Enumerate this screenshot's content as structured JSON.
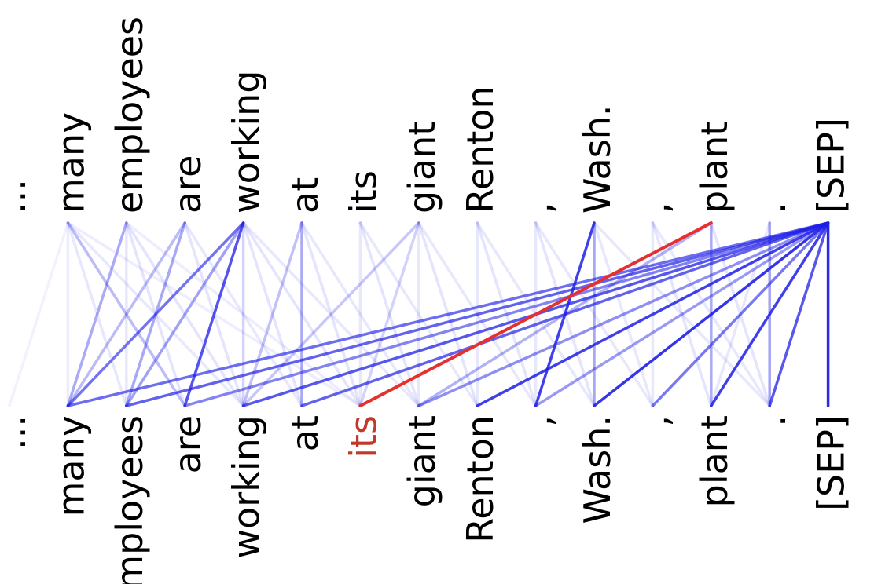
{
  "diagram": {
    "tokens": [
      "...",
      "many",
      "employees",
      "are",
      "working",
      "at",
      "its",
      "giant",
      "Renton",
      ",",
      "Wash.",
      ",",
      "plant",
      ".",
      "[SEP]"
    ],
    "focus_token_index": 6,
    "colors": {
      "attention": "#1f1fe6",
      "highlight": "#e53030",
      "text": "#000000",
      "focus_text": "#c0392b"
    },
    "edges": [
      {
        "from": 1,
        "to": 0,
        "w": 0.06
      },
      {
        "from": 1,
        "to": 1,
        "w": 0.08
      },
      {
        "from": 1,
        "to": 2,
        "w": 0.1
      },
      {
        "from": 1,
        "to": 3,
        "w": 0.1
      },
      {
        "from": 1,
        "to": 4,
        "w": 0.1
      },
      {
        "from": 1,
        "to": 6,
        "w": 0.08
      },
      {
        "from": 2,
        "to": 2,
        "w": 0.1
      },
      {
        "from": 2,
        "to": 3,
        "w": 0.12
      },
      {
        "from": 2,
        "to": 4,
        "w": 0.12
      },
      {
        "from": 2,
        "to": 6,
        "w": 0.08
      },
      {
        "from": 3,
        "to": 2,
        "w": 0.12
      },
      {
        "from": 3,
        "to": 4,
        "w": 0.12
      },
      {
        "from": 3,
        "to": 5,
        "w": 0.1
      },
      {
        "from": 4,
        "to": 3,
        "w": 0.15
      },
      {
        "from": 4,
        "to": 5,
        "w": 0.12
      },
      {
        "from": 4,
        "to": 6,
        "w": 0.12
      },
      {
        "from": 4,
        "to": 7,
        "w": 0.1
      },
      {
        "from": 5,
        "to": 5,
        "w": 0.1
      },
      {
        "from": 5,
        "to": 6,
        "w": 0.12
      },
      {
        "from": 5,
        "to": 7,
        "w": 0.1
      },
      {
        "from": 6,
        "to": 6,
        "w": 0.1
      },
      {
        "from": 6,
        "to": 7,
        "w": 0.12
      },
      {
        "from": 6,
        "to": 8,
        "w": 0.1
      },
      {
        "from": 7,
        "to": 7,
        "w": 0.1
      },
      {
        "from": 7,
        "to": 8,
        "w": 0.12
      },
      {
        "from": 7,
        "to": 9,
        "w": 0.1
      },
      {
        "from": 8,
        "to": 8,
        "w": 0.1
      },
      {
        "from": 8,
        "to": 9,
        "w": 0.12
      },
      {
        "from": 8,
        "to": 10,
        "w": 0.1
      },
      {
        "from": 9,
        "to": 9,
        "w": 0.1
      },
      {
        "from": 9,
        "to": 10,
        "w": 0.12
      },
      {
        "from": 9,
        "to": 11,
        "w": 0.1
      },
      {
        "from": 10,
        "to": 10,
        "w": 0.12
      },
      {
        "from": 10,
        "to": 11,
        "w": 0.1
      },
      {
        "from": 10,
        "to": 13,
        "w": 0.1
      },
      {
        "from": 11,
        "to": 11,
        "w": 0.1
      },
      {
        "from": 11,
        "to": 12,
        "w": 0.12
      },
      {
        "from": 11,
        "to": 13,
        "w": 0.1
      },
      {
        "from": 12,
        "to": 12,
        "w": 0.1
      },
      {
        "from": 12,
        "to": 13,
        "w": 0.12
      },
      {
        "from": 13,
        "to": 13,
        "w": 0.15
      },
      {
        "from": 13,
        "to": 12,
        "w": 0.1
      },
      {
        "from": 2,
        "to": 1,
        "w": 0.38
      },
      {
        "from": 3,
        "to": 1,
        "w": 0.3
      },
      {
        "from": 4,
        "to": 1,
        "w": 0.62
      },
      {
        "from": 4,
        "to": 2,
        "w": 0.42
      },
      {
        "from": 4,
        "to": 4,
        "w": 0.2
      },
      {
        "from": 4,
        "to": 3,
        "w": 0.72
      },
      {
        "from": 1,
        "to": 3,
        "w": 0.22
      },
      {
        "from": 3,
        "to": 2,
        "w": 0.3
      },
      {
        "from": 5,
        "to": 4,
        "w": 0.28
      },
      {
        "from": 5,
        "to": 5,
        "w": 0.3
      },
      {
        "from": 7,
        "to": 6,
        "w": 0.2
      },
      {
        "from": 7,
        "to": 4,
        "w": 0.25
      },
      {
        "from": 10,
        "to": 9,
        "w": 0.85
      },
      {
        "from": 10,
        "to": 10,
        "w": 0.3
      },
      {
        "from": 12,
        "to": 12,
        "w": 0.3
      },
      {
        "from": 12,
        "to": 7,
        "w": 0.35
      },
      {
        "from": 13,
        "to": 13,
        "w": 0.3
      },
      {
        "from": 14,
        "to": 1,
        "w": 0.65
      },
      {
        "from": 14,
        "to": 2,
        "w": 0.7
      },
      {
        "from": 14,
        "to": 3,
        "w": 0.55
      },
      {
        "from": 14,
        "to": 4,
        "w": 0.75
      },
      {
        "from": 14,
        "to": 5,
        "w": 0.7
      },
      {
        "from": 14,
        "to": 7,
        "w": 0.5
      },
      {
        "from": 14,
        "to": 8,
        "w": 0.85
      },
      {
        "from": 14,
        "to": 9,
        "w": 0.45
      },
      {
        "from": 14,
        "to": 10,
        "w": 0.9
      },
      {
        "from": 14,
        "to": 11,
        "w": 0.6
      },
      {
        "from": 14,
        "to": 12,
        "w": 0.85
      },
      {
        "from": 14,
        "to": 13,
        "w": 0.75
      },
      {
        "from": 14,
        "to": 14,
        "w": 0.95
      }
    ],
    "highlight_edge": {
      "from": 12,
      "to": 6
    }
  }
}
